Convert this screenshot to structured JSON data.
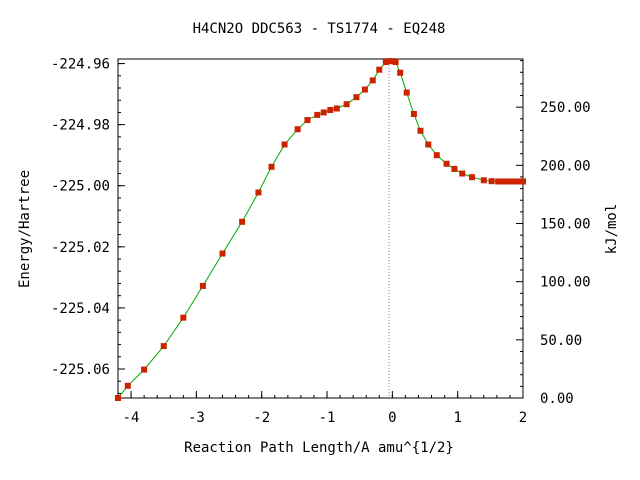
{
  "title": "H4CN2O   DDC563 - TS1774 - EQ248",
  "chart_data": {
    "type": "line",
    "title": "H4CN2O   DDC563 - TS1774 - EQ248",
    "xlabel": "Reaction Path Length/A amu^{1/2}",
    "ylabel": "Energy/Hartree",
    "y2label": "kJ/mol",
    "xlim": [
      -4.2,
      2.0
    ],
    "ylim": [
      -225.0695,
      -224.9585
    ],
    "y2lim": [
      0,
      291.4
    ],
    "x_ticks": [
      -4,
      -3,
      -2,
      -1,
      0,
      1,
      2
    ],
    "x_tick_labels": [
      "-4",
      "-3",
      "-2",
      "-1",
      "0",
      "1",
      "2"
    ],
    "y_ticks": [
      -224.96,
      -224.98,
      -225.0,
      -225.02,
      -225.04,
      -225.06
    ],
    "y_tick_labels": [
      "-224.96",
      "-224.98",
      "-225.00",
      "-225.02",
      "-225.04",
      "-225.06"
    ],
    "y2_ticks": [
      0,
      50,
      100,
      150,
      200,
      250
    ],
    "y2_tick_labels": [
      "0.00",
      "50.00",
      "100.00",
      "150.00",
      "200.00",
      "250.00"
    ],
    "ts_marker_x": -0.05,
    "grid": false,
    "colors": {
      "line": "#00aa00",
      "marker": "#cc2200",
      "axis": "#000000",
      "ts_line": "#888888"
    },
    "series": [
      {
        "x": [
          -4.2,
          -4.05,
          -3.8,
          -3.5,
          -3.2,
          -2.9,
          -2.6,
          -2.3,
          -2.05,
          -1.85,
          -1.65,
          -1.45,
          -1.3,
          -1.15,
          -1.05,
          -0.95,
          -0.85,
          -0.7,
          -0.55,
          -0.42,
          -0.3,
          -0.2,
          -0.1,
          -0.05,
          0.0,
          0.05,
          0.12,
          0.22,
          0.33,
          0.43,
          0.55,
          0.68,
          0.83,
          0.95,
          1.07,
          1.22,
          1.4,
          1.52,
          1.62,
          1.7,
          1.78,
          1.86,
          1.93,
          2.0
        ],
        "y": [
          -225.0695,
          -225.0655,
          -225.0602,
          -225.0525,
          -225.0432,
          -225.0328,
          -225.0222,
          -225.0118,
          -225.0022,
          -224.9938,
          -224.9865,
          -224.9815,
          -224.9785,
          -224.9768,
          -224.976,
          -224.9752,
          -224.9747,
          -224.9733,
          -224.971,
          -224.9685,
          -224.9655,
          -224.962,
          -224.9595,
          -224.9592,
          -224.9592,
          -224.9595,
          -224.963,
          -224.9695,
          -224.9765,
          -224.982,
          -224.9865,
          -224.99,
          -224.9928,
          -224.9945,
          -224.996,
          -224.9972,
          -224.9982,
          -224.9985,
          -224.9986,
          -224.9986,
          -224.9986,
          -224.9986,
          -224.9986,
          -224.9986
        ]
      }
    ]
  }
}
